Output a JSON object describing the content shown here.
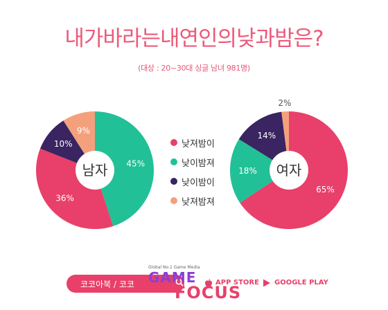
{
  "title": "내가바라는내연인의낮과밤은?",
  "subtitle": "(대상 : 20~30대 싱글 남녀 981명)",
  "colors": {
    "day_wild": "#e8406a",
    "day_gentle": "#22c097",
    "day_gentle_night_gentle": "#3a2461",
    "day_wild_night_wild": "#f5a07c"
  },
  "chart_data": [
    {
      "type": "pie",
      "center_label": "남자",
      "categories": [
        "낮져밤이",
        "낮이밤져",
        "낮이밤이",
        "낮져밤져"
      ],
      "values": [
        36,
        45,
        10,
        9
      ],
      "labels": [
        "36%",
        "45%",
        "10%",
        "9%"
      ],
      "colors": [
        "#e8406a",
        "#22c097",
        "#3a2461",
        "#f5a07c"
      ]
    },
    {
      "type": "pie",
      "center_label": "여자",
      "categories": [
        "낮져밤이",
        "낮이밤져",
        "낮이밤이",
        "낮져밤져"
      ],
      "values": [
        65,
        18,
        14,
        2
      ],
      "labels": [
        "65%",
        "18%",
        "14%",
        "2%"
      ],
      "colors": [
        "#e8406a",
        "#22c097",
        "#3a2461",
        "#f5a07c"
      ]
    }
  ],
  "legend": [
    {
      "label": "낮져밤이",
      "color": "#e8406a"
    },
    {
      "label": "낮이밤져",
      "color": "#22c097"
    },
    {
      "label": "낮이밤이",
      "color": "#3a2461"
    },
    {
      "label": "낮져밤져",
      "color": "#f5a07c"
    }
  ],
  "footer": {
    "search_text": "코코아북 / 코코",
    "app_store": "APP STORE",
    "google_play": "GOOGLE PLAY",
    "logo_tagline": "Global No.1 Game Media",
    "logo_game": "GAME",
    "logo_focus": "FOCUS",
    "icons": [
      "search-icon",
      "apple-icon",
      "play-icon"
    ]
  }
}
